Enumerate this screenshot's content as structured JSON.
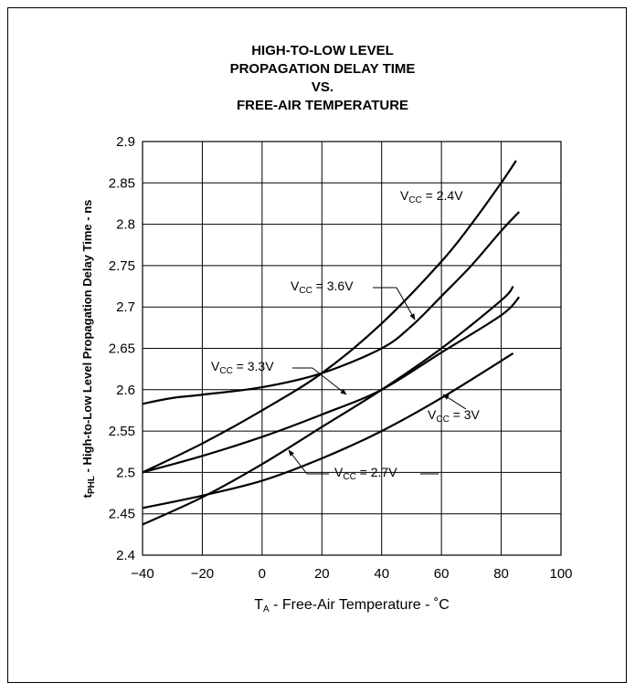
{
  "chart_data": {
    "type": "line",
    "title_lines": [
      "HIGH-TO-LOW LEVEL",
      "PROPAGATION DELAY TIME",
      "VS.",
      "FREE-AIR TEMPERATURE"
    ],
    "xlabel": {
      "main": "T",
      "sub": "A",
      "rest": " - Free-Air Temperature - ˚C"
    },
    "ylabel": {
      "main": "t",
      "sub": "PHL",
      "rest": " - High-to-Low Level Propagation Delay Time - ns"
    },
    "xlim": [
      -40,
      100
    ],
    "ylim": [
      2.4,
      2.9
    ],
    "x_ticks": [
      -40,
      -20,
      0,
      20,
      40,
      60,
      80,
      100
    ],
    "x_tick_labels": [
      "−40",
      "−20",
      "0",
      "20",
      "40",
      "60",
      "80",
      "100"
    ],
    "y_ticks": [
      2.4,
      2.45,
      2.5,
      2.55,
      2.6,
      2.65,
      2.7,
      2.75,
      2.8,
      2.85,
      2.9
    ],
    "y_tick_labels": [
      "2.4",
      "2.45",
      "2.5",
      "2.55",
      "2.6",
      "2.65",
      "2.7",
      "2.75",
      "2.8",
      "2.85",
      "2.9"
    ],
    "grid": true,
    "series": [
      {
        "name": "VCC = 2.4V",
        "label_main": "V",
        "label_sub": "CC",
        "label_rest": " = 2.4V",
        "x": [
          -40,
          -20,
          0,
          20,
          40,
          60,
          70,
          80,
          85
        ],
        "y": [
          2.5,
          2.535,
          2.575,
          2.62,
          2.68,
          2.755,
          2.8,
          2.85,
          2.877
        ]
      },
      {
        "name": "VCC = 3.6V",
        "label_main": "V",
        "label_sub": "CC",
        "label_rest": " = 3.6V",
        "x": [
          -40,
          -30,
          -20,
          0,
          20,
          40,
          50,
          60,
          70,
          80,
          86
        ],
        "y": [
          2.583,
          2.59,
          2.594,
          2.603,
          2.62,
          2.65,
          2.677,
          2.713,
          2.75,
          2.792,
          2.815
        ]
      },
      {
        "name": "VCC = 3.3V",
        "label_main": "V",
        "label_sub": "CC",
        "label_rest": " = 3.3V",
        "x": [
          -40,
          -20,
          0,
          20,
          40,
          60,
          80,
          86
        ],
        "y": [
          2.5,
          2.52,
          2.543,
          2.57,
          2.6,
          2.645,
          2.69,
          2.712
        ]
      },
      {
        "name": "VCC = 2.7V",
        "label_main": "V",
        "label_sub": "CC",
        "label_rest": " = 2.7V",
        "x": [
          -40,
          -20,
          0,
          20,
          40,
          60,
          80,
          84
        ],
        "y": [
          2.437,
          2.47,
          2.51,
          2.555,
          2.6,
          2.65,
          2.708,
          2.725
        ]
      },
      {
        "name": "VCC = 3V",
        "label_main": "V",
        "label_sub": "CC",
        "label_rest": " = 3V",
        "x": [
          -40,
          -20,
          0,
          20,
          40,
          60,
          84
        ],
        "y": [
          2.457,
          2.472,
          2.49,
          2.517,
          2.55,
          2.59,
          2.644
        ]
      }
    ]
  }
}
